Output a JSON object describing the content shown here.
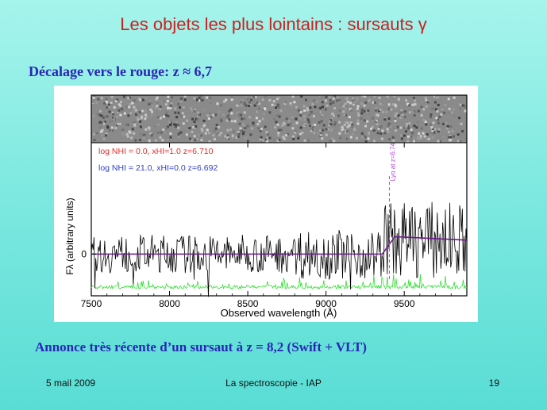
{
  "slide": {
    "title": "Les objets les plus lointains : sursauts γ",
    "subtitle": "Décalage vers le rouge: z ≈ 6,7",
    "announcement": "Annonce très récente d’un sursaut à z = 8,2 (Swift + VLT)",
    "footer_date": "5 mail 2009",
    "footer_title": "La spectroscopie - IAP",
    "page_number": "19"
  },
  "chart_data": {
    "type": "line",
    "xlabel": "Observed wavelength (Å)",
    "ylabel": "Fλ (arbitrary units)",
    "xlim": [
      7500,
      9900
    ],
    "ylim": [
      -0.6,
      1.6
    ],
    "x_ticks": [
      7500,
      8000,
      8500,
      9000,
      9500
    ],
    "y_ticks": [
      0
    ],
    "legend": [
      {
        "text": "log NHI = 0.0, xHI=1.0 z=6.710",
        "color": "#e0302c"
      },
      {
        "text": "log NHI = 21.0, xHI=0.0 z=6.692",
        "color": "#2f3fc8"
      }
    ],
    "annotation": "Lyα at z=6.74",
    "annotation_wavelength": 9405,
    "lyman_break_wavelength": 9360,
    "flux_below_break": 0.0,
    "flux_above_break": 0.2,
    "colors": {
      "spectrum": "#000000",
      "model": "#6a1a8a",
      "error": "#33dd33",
      "annotation": "#b040e0"
    }
  }
}
